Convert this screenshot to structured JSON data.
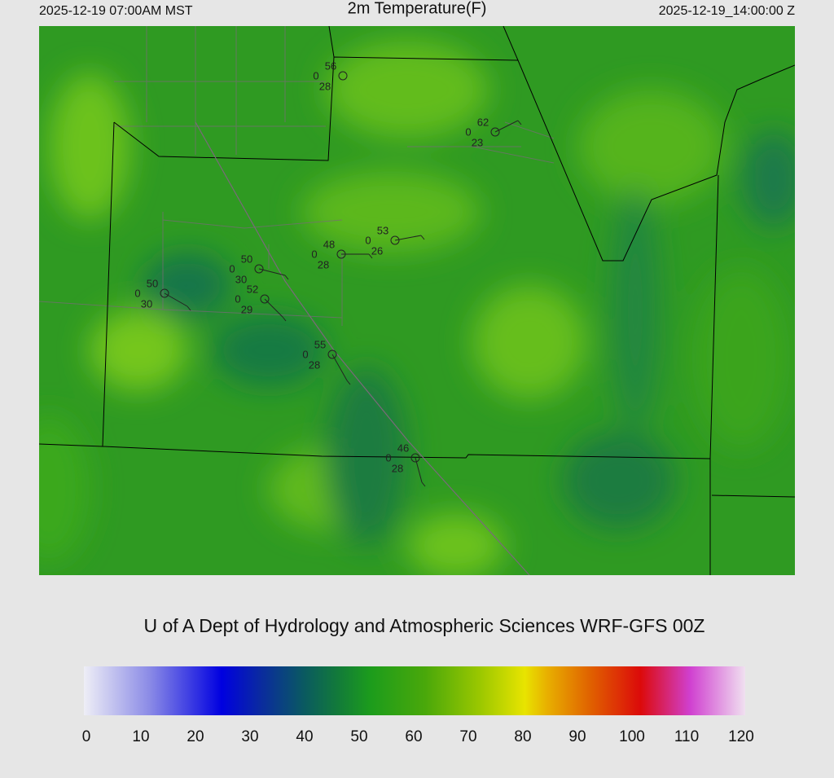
{
  "header": {
    "left": "2025-12-19 07:00AM MST",
    "title": "2m Temperature(F)",
    "right": "2025-12-19_14:00:00 Z"
  },
  "stations": [
    {
      "temperature": 56,
      "dewpoint": 28,
      "cloud": 0
    },
    {
      "temperature": 62,
      "dewpoint": 23,
      "cloud": 0
    },
    {
      "temperature": 53,
      "dewpoint": 26,
      "cloud": 0
    },
    {
      "temperature": 48,
      "dewpoint": 28,
      "cloud": 0
    },
    {
      "temperature": 50,
      "dewpoint": 30,
      "cloud": 0
    },
    {
      "temperature": 50,
      "dewpoint": 30,
      "cloud": 0
    },
    {
      "temperature": 52,
      "dewpoint": 29,
      "cloud": 0
    },
    {
      "temperature": 55,
      "dewpoint": 28,
      "cloud": 0
    },
    {
      "temperature": 46,
      "dewpoint": 28,
      "cloud": 0
    }
  ],
  "credit": "U of A Dept of Hydrology and Atmospheric Sciences WRF-GFS 00Z",
  "colorbar": {
    "range": [
      0,
      120
    ],
    "ticks": [
      0,
      10,
      20,
      30,
      40,
      50,
      60,
      70,
      80,
      90,
      100,
      110,
      120
    ],
    "stops": [
      {
        "value": 0,
        "color": "#eeeef6"
      },
      {
        "value": 12,
        "color": "#8a8ae6"
      },
      {
        "value": 25,
        "color": "#0000e0"
      },
      {
        "value": 32,
        "color": "#0a2aa0"
      },
      {
        "value": 40,
        "color": "#0a5a60"
      },
      {
        "value": 46,
        "color": "#127a3a"
      },
      {
        "value": 52,
        "color": "#1c9c1c"
      },
      {
        "value": 62,
        "color": "#4aa80a"
      },
      {
        "value": 72,
        "color": "#9cc800"
      },
      {
        "value": 80,
        "color": "#e8e400"
      },
      {
        "value": 84,
        "color": "#e8b000"
      },
      {
        "value": 92,
        "color": "#e06000"
      },
      {
        "value": 101,
        "color": "#dc0a0a"
      },
      {
        "value": 110,
        "color": "#d040d0"
      },
      {
        "value": 120,
        "color": "#f0e0f0"
      }
    ]
  }
}
